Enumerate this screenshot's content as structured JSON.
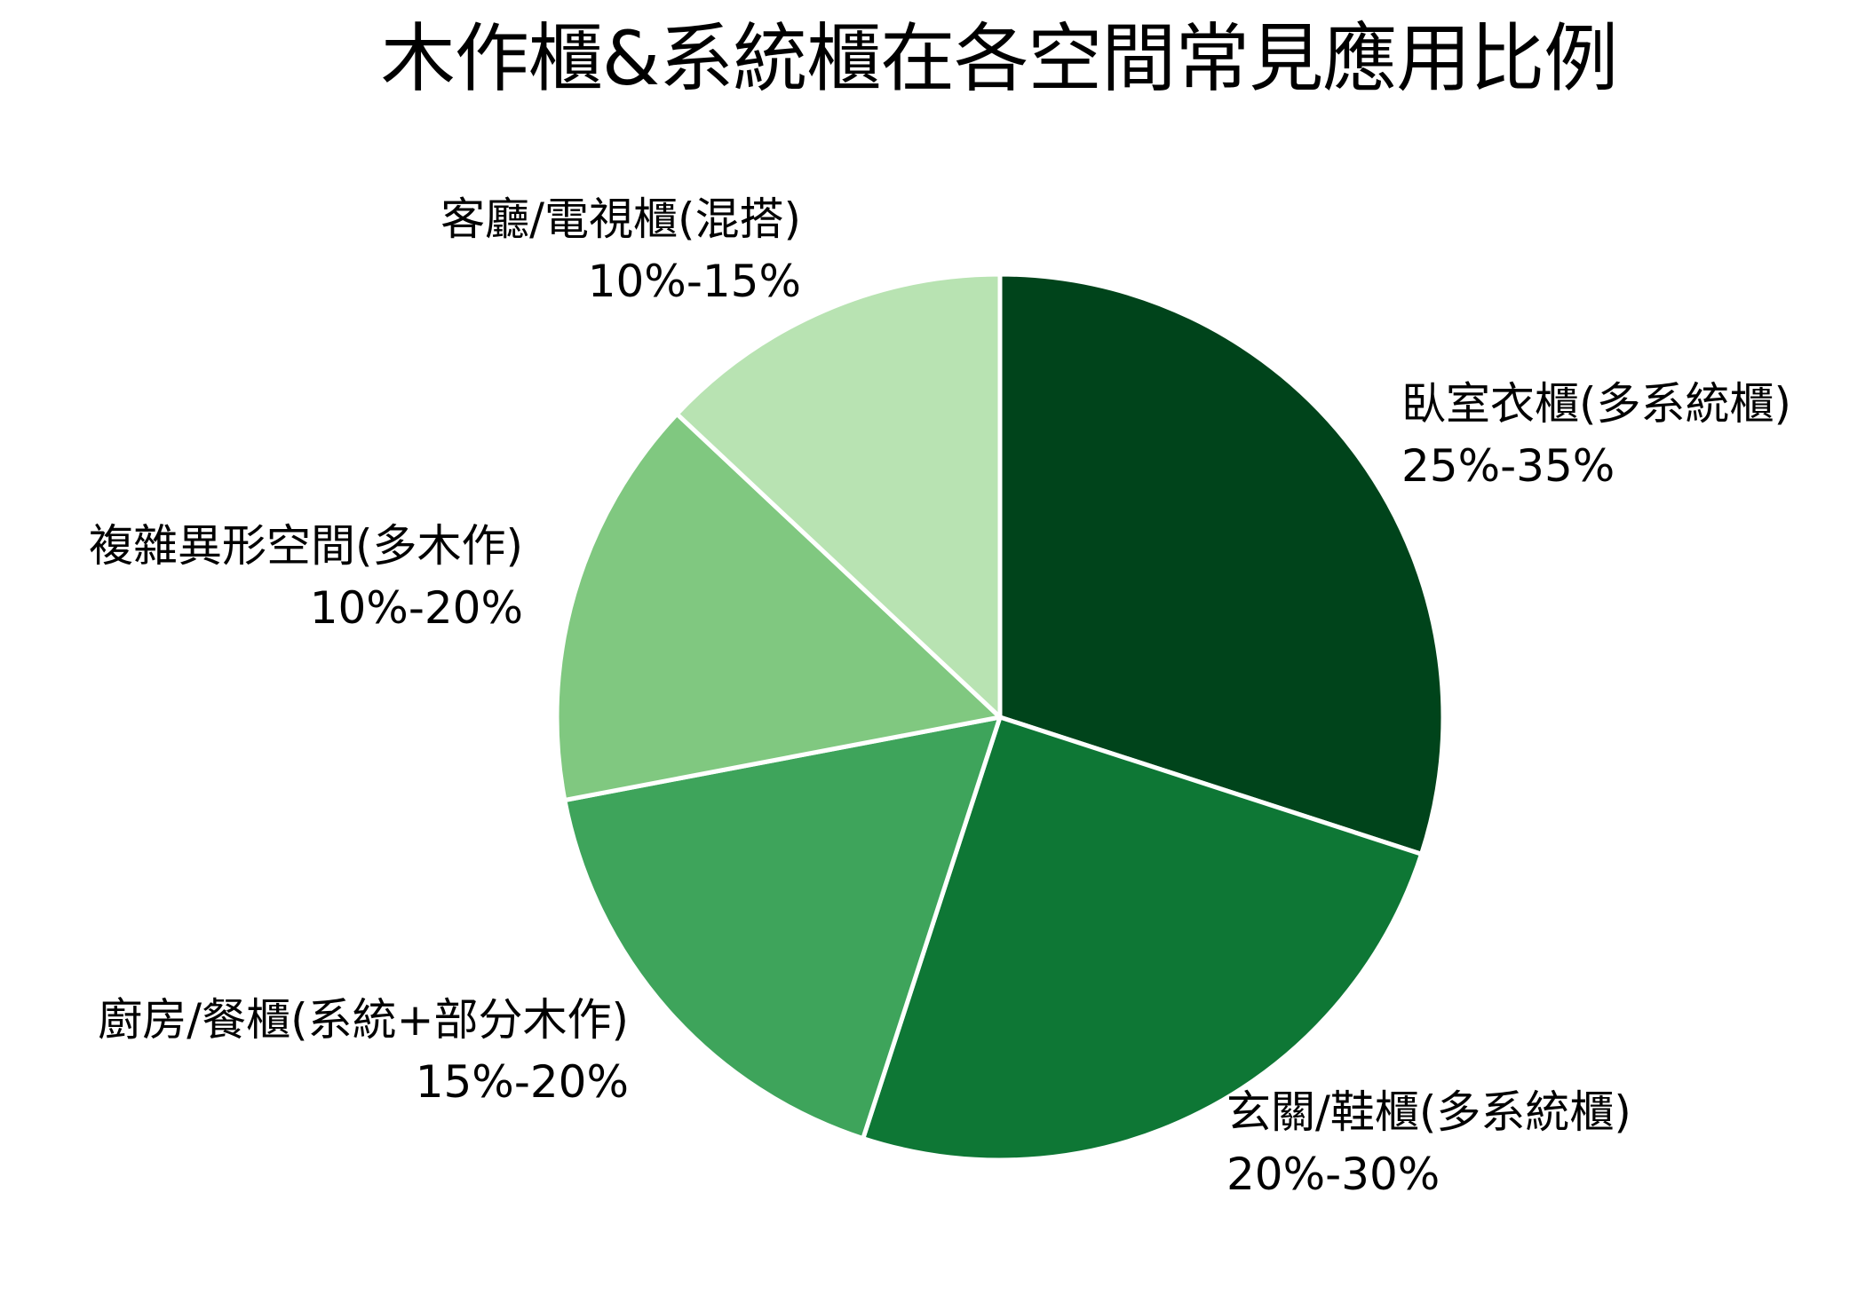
{
  "chart_data": {
    "type": "pie",
    "title": "木作櫃&系統櫃在各空間常見應用比例",
    "start_angle": "top (12 o'clock)",
    "direction": "clockwise",
    "legend": "none (labels outside slices)",
    "slices": [
      {
        "name": "臥室衣櫃(多系統櫃)",
        "range": "25%-35%",
        "value": 30,
        "color": "#00441b"
      },
      {
        "name": "玄關/鞋櫃(多系統櫃)",
        "range": "20%-30%",
        "value": 25,
        "color": "#0e7735"
      },
      {
        "name": "廚房/餐櫃(系統+部分木作)",
        "range": "15%-20%",
        "value": 17,
        "color": "#3ea45b"
      },
      {
        "name": "複雜異形空間(多木作)",
        "range": "10%-20%",
        "value": 15,
        "color": "#80c880"
      },
      {
        "name": "客廳/電視櫃(混搭)",
        "range": "10%-15%",
        "value": 13,
        "color": "#b8e3b2"
      }
    ],
    "categories": [
      "臥室衣櫃(多系統櫃)",
      "玄關/鞋櫃(多系統櫃)",
      "廚房/餐櫃(系統+部分木作)",
      "複雜異形空間(多木作)",
      "客廳/電視櫃(混搭)"
    ],
    "values": [
      30,
      25,
      17,
      15,
      13
    ],
    "edge_color": "#ffffff"
  }
}
